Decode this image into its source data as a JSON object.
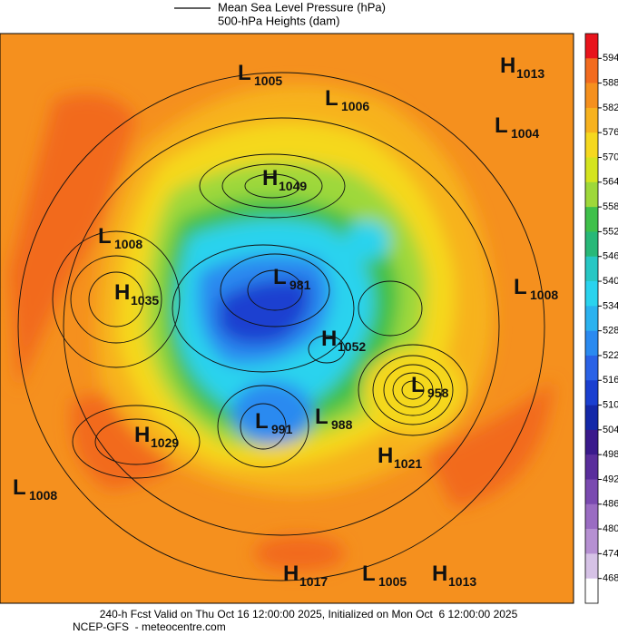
{
  "legend": {
    "line_label": "Mean Sea Level Pressure (hPa)",
    "fill_label": "500-hPa Heights (dam)"
  },
  "colorbar": {
    "labels": [
      "594",
      "588",
      "582",
      "576",
      "570",
      "564",
      "558",
      "552",
      "546",
      "540",
      "534",
      "528",
      "522",
      "516",
      "510",
      "504",
      "498",
      "492",
      "486",
      "480",
      "474",
      "468"
    ]
  },
  "systems": [
    {
      "letter": "L",
      "value": "1005"
    },
    {
      "letter": "L",
      "value": "1006"
    },
    {
      "letter": "H",
      "value": "1013"
    },
    {
      "letter": "L",
      "value": "1004"
    },
    {
      "letter": "H",
      "value": "1049"
    },
    {
      "letter": "L",
      "value": "1008"
    },
    {
      "letter": "H",
      "value": "1035"
    },
    {
      "letter": "L",
      "value": "981"
    },
    {
      "letter": "L",
      "value": "1008"
    },
    {
      "letter": "H",
      "value": "1052"
    },
    {
      "letter": "L",
      "value": "958"
    },
    {
      "letter": "H",
      "value": "1029"
    },
    {
      "letter": "L",
      "value": "991"
    },
    {
      "letter": "L",
      "value": "988"
    },
    {
      "letter": "H",
      "value": "1021"
    },
    {
      "letter": "L",
      "value": "1008"
    },
    {
      "letter": "H",
      "value": "1017"
    },
    {
      "letter": "L",
      "value": "1005"
    },
    {
      "letter": "H",
      "value": "1013"
    }
  ],
  "footer": {
    "line1": "240-h Fcst Valid on Thu Oct 16 12:00:00 2025, Initialized on Mon Oct  6 12:00:00 2025",
    "line2": "NCEP-GFS  - meteocentre.com"
  }
}
